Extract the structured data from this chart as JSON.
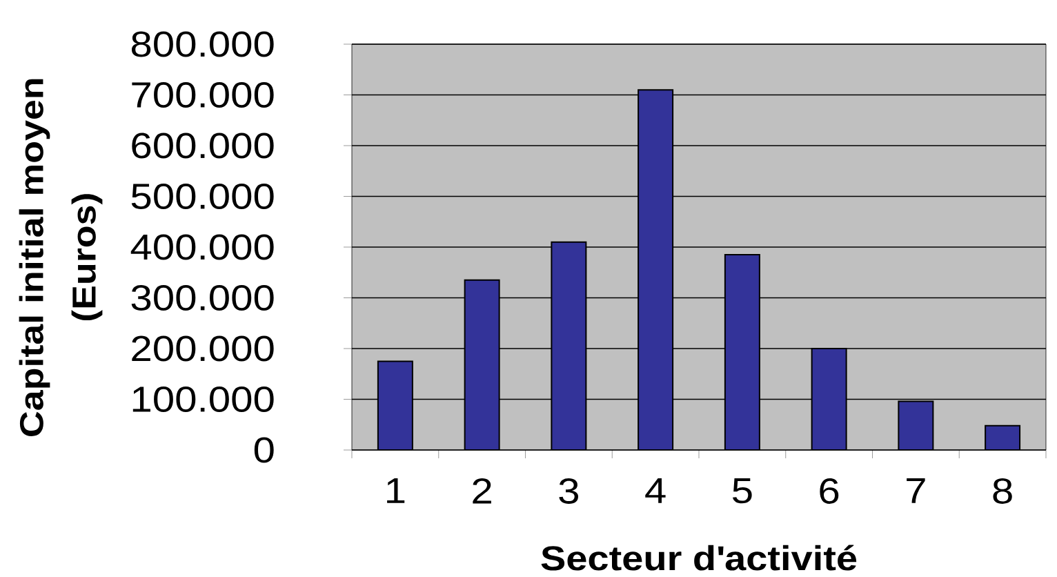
{
  "chart_data": {
    "type": "bar",
    "xlabel": "Secteur d'activité",
    "ylabel": "Capital initial moyen (Euros)",
    "categories": [
      "1",
      "2",
      "3",
      "4",
      "5",
      "6",
      "7",
      "8"
    ],
    "values": [
      175000,
      335000,
      410000,
      710000,
      385000,
      200000,
      96000,
      48000
    ],
    "color": "#333399",
    "ylim": [
      0,
      800000
    ],
    "yticks": [
      0,
      {
        "value": 100000,
        "label": "100.000"
      },
      {
        "value": 200000,
        "label": "200.000"
      },
      {
        "value": 300000,
        "label": "300.000"
      },
      {
        "value": 400000,
        "label": "400.000"
      },
      {
        "value": 500000,
        "label": "500.000"
      },
      {
        "value": 600000,
        "label": "600.000"
      },
      {
        "value": 700000,
        "label": "700.000"
      },
      {
        "value": 800000,
        "label": "800.000"
      }
    ],
    "grid": "y"
  }
}
